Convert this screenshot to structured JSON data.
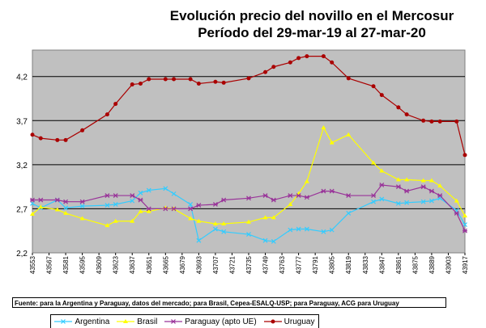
{
  "chart_data": {
    "type": "line",
    "title": [
      "Evolución precio del novillo en el Mercosur",
      "Período del 29-mar-19 al 27-mar-20"
    ],
    "xlabel": "",
    "ylabel": "",
    "ylim": [
      2.2,
      4.5
    ],
    "yticks": [
      "2,2",
      "2,7",
      "3,2",
      "3,7",
      "4,2"
    ],
    "ytick_values": [
      2.2,
      2.7,
      3.2,
      3.7,
      4.2
    ],
    "xlim": [
      43553,
      43917
    ],
    "xticks": [
      "43553",
      "43567",
      "43581",
      "43595",
      "43609",
      "43623",
      "43637",
      "43651",
      "43665",
      "43679",
      "43693",
      "43707",
      "43721",
      "43735",
      "43749",
      "43763",
      "43777",
      "43791",
      "43805",
      "43819",
      "43833",
      "43847",
      "43861",
      "43875",
      "43889",
      "43903",
      "43917"
    ],
    "grid": "horizontal",
    "legend_position": "bottom",
    "x": [
      43553,
      43560,
      43574,
      43581,
      43595,
      43616,
      43623,
      43637,
      43644,
      43651,
      43665,
      43672,
      43686,
      43693,
      43707,
      43714,
      43735,
      43749,
      43756,
      43770,
      43777,
      43784,
      43798,
      43805,
      43819,
      43840,
      43847,
      43861,
      43868,
      43882,
      43889,
      43896,
      43910,
      43917
    ],
    "series": [
      {
        "name": "Argentina",
        "color": "#33ccff",
        "marker": "x",
        "values": [
          2.76,
          2.71,
          2.8,
          2.71,
          2.73,
          2.74,
          2.75,
          2.79,
          2.88,
          2.91,
          2.93,
          2.87,
          2.75,
          2.34,
          2.47,
          2.44,
          2.41,
          2.34,
          2.33,
          2.46,
          2.47,
          2.47,
          2.44,
          2.46,
          2.65,
          2.78,
          2.81,
          2.76,
          2.77,
          2.78,
          2.79,
          2.82,
          2.68,
          2.52
        ]
      },
      {
        "name": "Brasil",
        "color": "#ffff00",
        "marker": "triangle",
        "values": [
          2.64,
          2.72,
          2.69,
          2.65,
          2.59,
          2.51,
          2.56,
          2.56,
          2.67,
          2.67,
          2.71,
          2.7,
          2.59,
          2.56,
          2.53,
          2.53,
          2.55,
          2.6,
          2.6,
          2.75,
          2.87,
          3.01,
          3.62,
          3.45,
          3.54,
          3.22,
          3.13,
          3.03,
          3.03,
          3.02,
          3.02,
          2.96,
          2.79,
          2.62
        ]
      },
      {
        "name": "Paraguay (apto UE)",
        "color": "#993399",
        "marker": "star",
        "values": [
          2.8,
          2.8,
          2.8,
          2.78,
          2.78,
          2.85,
          2.85,
          2.85,
          2.8,
          2.7,
          2.7,
          2.7,
          2.7,
          2.74,
          2.75,
          2.8,
          2.82,
          2.85,
          2.8,
          2.85,
          2.85,
          2.83,
          2.9,
          2.9,
          2.85,
          2.85,
          2.97,
          2.95,
          2.9,
          2.95,
          2.9,
          2.85,
          2.65,
          2.45
        ]
      },
      {
        "name": "Uruguay",
        "color": "#aa0000",
        "marker": "circle",
        "values": [
          3.54,
          3.5,
          3.48,
          3.48,
          3.59,
          3.77,
          3.89,
          4.11,
          4.12,
          4.17,
          4.17,
          4.17,
          4.17,
          4.12,
          4.14,
          4.13,
          4.18,
          4.25,
          4.31,
          4.36,
          4.41,
          4.43,
          4.43,
          4.36,
          4.18,
          4.09,
          3.99,
          3.85,
          3.77,
          3.7,
          3.69,
          3.69,
          3.69,
          3.31
        ]
      }
    ]
  },
  "source_note": "Fuente: para la Argentina y Paraguay, datos del mercado; para Brasil, Cepea-ESALQ-USP; para Paraguay, ACG para Uruguay"
}
